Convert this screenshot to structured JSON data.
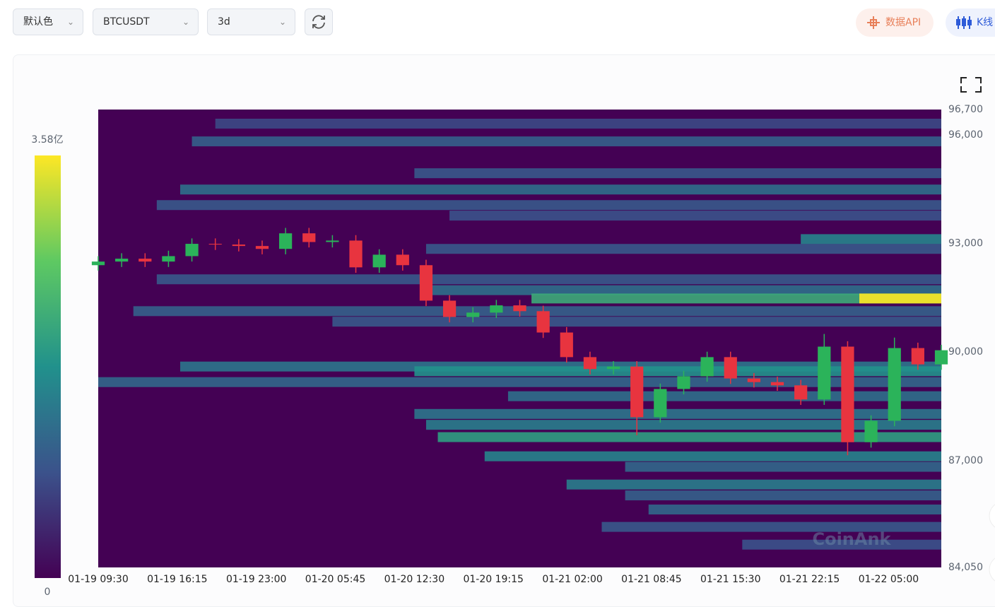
{
  "toolbar": {
    "color_select": "默认色",
    "symbol_select": "BTCUSDT",
    "range_select": "3d",
    "api_button": "数据API",
    "kline_button": "K线"
  },
  "chart_data": {
    "type": "heatmap",
    "watermark": "CoinAnk",
    "colorscale": [
      "#440154",
      "#3b528b",
      "#21918c",
      "#5ec962",
      "#fde725"
    ],
    "clim": [
      0,
      3.58
    ],
    "cticks": [
      0,
      {
        "value": 3.58,
        "label": "3.58亿"
      }
    ],
    "xlim": [
      0,
      72
    ],
    "xticks": [
      {
        "value": 0,
        "label": "01-19 09:30"
      },
      {
        "value": 6.75,
        "label": "01-19 16:15"
      },
      {
        "value": 13.5,
        "label": "01-19 23:00"
      },
      {
        "value": 20.25,
        "label": "01-20 05:45"
      },
      {
        "value": 27,
        "label": "01-20 12:30"
      },
      {
        "value": 33.75,
        "label": "01-20 19:15"
      },
      {
        "value": 40.5,
        "label": "01-21 02:00"
      },
      {
        "value": 47.25,
        "label": "01-21 08:45"
      },
      {
        "value": 54,
        "label": "01-21 15:30"
      },
      {
        "value": 60.75,
        "label": "01-21 22:15"
      },
      {
        "value": 67.5,
        "label": "01-22 05:00"
      }
    ],
    "ylim": [
      84050,
      96700
    ],
    "yticks": [
      {
        "value": 84050,
        "label": "84,050"
      },
      {
        "value": 87000,
        "label": "87,000"
      },
      {
        "value": 90000,
        "label": "90,000"
      },
      {
        "value": 93000,
        "label": "93,000"
      },
      {
        "value": 96000,
        "label": "96,000"
      },
      {
        "value": 96700,
        "label": "96,700"
      }
    ],
    "bands": [
      {
        "price": 96310,
        "start": 10,
        "value": 0.8
      },
      {
        "price": 95820,
        "start": 8,
        "value": 1.1
      },
      {
        "price": 94940,
        "start": 27,
        "value": 1.0
      },
      {
        "price": 94490,
        "start": 7,
        "value": 1.3
      },
      {
        "price": 94060,
        "start": 5,
        "value": 1.0
      },
      {
        "price": 93770,
        "start": 30,
        "value": 0.9
      },
      {
        "price": 93120,
        "start": 60,
        "value": 1.6
      },
      {
        "price": 92850,
        "start": 28,
        "value": 1.0
      },
      {
        "price": 92010,
        "start": 5,
        "value": 1.0
      },
      {
        "price": 91710,
        "start": 28,
        "value": 1.3
      },
      {
        "price": 91480,
        "start": 37,
        "value": 2.2
      },
      {
        "price": 91480,
        "start": 65,
        "value": 3.58
      },
      {
        "price": 91130,
        "start": 3,
        "value": 1.1
      },
      {
        "price": 90840,
        "start": 20,
        "value": 1.0
      },
      {
        "price": 89600,
        "start": 7,
        "value": 1.4
      },
      {
        "price": 89470,
        "start": 27,
        "value": 1.8
      },
      {
        "price": 89170,
        "start": 0,
        "value": 1.2
      },
      {
        "price": 88780,
        "start": 35,
        "value": 1.3
      },
      {
        "price": 88290,
        "start": 27,
        "value": 1.4
      },
      {
        "price": 87990,
        "start": 28,
        "value": 1.5
      },
      {
        "price": 87650,
        "start": 29,
        "value": 2.0
      },
      {
        "price": 87120,
        "start": 33,
        "value": 1.6
      },
      {
        "price": 86830,
        "start": 45,
        "value": 1.2
      },
      {
        "price": 86340,
        "start": 40,
        "value": 1.5
      },
      {
        "price": 86040,
        "start": 45,
        "value": 1.1
      },
      {
        "price": 85650,
        "start": 47,
        "value": 1.2
      },
      {
        "price": 85170,
        "start": 43,
        "value": 1.0
      },
      {
        "price": 84680,
        "start": 55,
        "value": 0.9
      }
    ],
    "candles": {
      "up_color": "#2bb35a",
      "down_color": "#e8343f",
      "x": [
        0,
        2,
        4,
        6,
        8,
        10,
        12,
        14,
        16,
        18,
        20,
        22,
        24,
        26,
        28,
        30,
        32,
        34,
        36,
        38,
        40,
        42,
        44,
        46,
        48,
        50,
        52,
        54,
        56,
        58,
        60,
        62,
        64,
        66,
        68,
        70,
        72
      ],
      "open": [
        92400,
        92500,
        92580,
        92500,
        92650,
        92990,
        92970,
        92930,
        92850,
        93280,
        93040,
        93080,
        92340,
        92690,
        92400,
        91420,
        90970,
        91090,
        91290,
        91130,
        90540,
        89860,
        89530,
        89600,
        88200,
        88980,
        89330,
        89860,
        89270,
        89170,
        89080,
        88690,
        90150,
        87510,
        88100,
        90110,
        89660
      ],
      "high": [
        92650,
        92730,
        92730,
        92800,
        93140,
        93140,
        93120,
        93080,
        93430,
        93430,
        93230,
        93230,
        92840,
        92840,
        92550,
        91570,
        91240,
        91440,
        91440,
        91280,
        90690,
        90010,
        89750,
        89750,
        89130,
        89480,
        90010,
        90010,
        89420,
        89320,
        89230,
        90500,
        90300,
        88250,
        90400,
        90260,
        90200
      ],
      "low": [
        92250,
        92350,
        92350,
        92350,
        92500,
        92820,
        92780,
        92700,
        92700,
        92890,
        92890,
        92190,
        92190,
        92250,
        91270,
        90820,
        90820,
        90940,
        90980,
        90390,
        89710,
        89380,
        89380,
        87700,
        88050,
        88830,
        89180,
        89120,
        89020,
        88930,
        88540,
        88540,
        87150,
        87360,
        87950,
        89510,
        89510
      ],
      "close": [
        92500,
        92580,
        92500,
        92650,
        92990,
        92970,
        92930,
        92850,
        93280,
        93040,
        93080,
        92340,
        92690,
        92400,
        91420,
        90970,
        91090,
        91290,
        91130,
        90540,
        89860,
        89530,
        89600,
        88200,
        88980,
        89330,
        89860,
        89270,
        89170,
        89080,
        88690,
        90150,
        87510,
        88100,
        90110,
        89660,
        90050
      ]
    }
  }
}
